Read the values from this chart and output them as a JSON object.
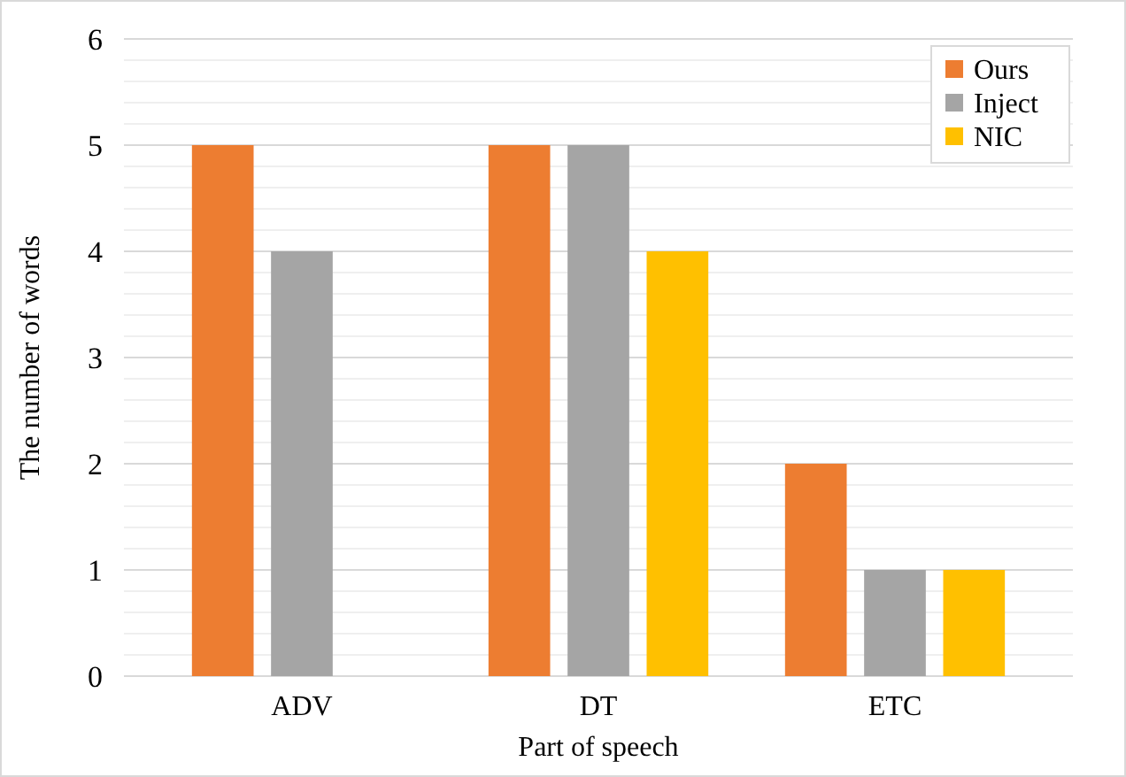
{
  "chart_data": {
    "type": "bar",
    "xlabel": "Part of speech",
    "ylabel": "The number of words",
    "categories": [
      "ADV",
      "DT",
      "ETC"
    ],
    "series": [
      {
        "name": "Ours",
        "color": "#ed7d31",
        "values": [
          5,
          5,
          2
        ]
      },
      {
        "name": "Inject",
        "color": "#a5a5a5",
        "values": [
          4,
          5,
          1
        ]
      },
      {
        "name": "NIC",
        "color": "#ffc000",
        "values": [
          0,
          4,
          1
        ]
      }
    ],
    "ylim": [
      0,
      6
    ],
    "yticks": [
      0,
      {
        "value": 0.2,
        "label": null
      },
      {
        "value": 0.4,
        "label": null
      },
      {
        "value": 0.6,
        "label": null
      },
      {
        "value": 0.8,
        "label": null
      },
      1,
      {
        "value": 1.2,
        "label": null
      },
      {
        "value": 1.4,
        "label": null
      },
      {
        "value": 1.6,
        "label": null
      },
      {
        "value": 1.8,
        "label": null
      },
      2,
      {
        "value": 2.2,
        "label": null
      },
      {
        "value": 2.4,
        "label": null
      },
      {
        "value": 2.6,
        "label": null
      },
      {
        "value": 2.8,
        "label": null
      },
      3,
      {
        "value": 3.2,
        "label": null
      },
      {
        "value": 3.4,
        "label": null
      },
      {
        "value": 3.6,
        "label": null
      },
      {
        "value": 3.8,
        "label": null
      },
      4,
      {
        "value": 4.2,
        "label": null
      },
      {
        "value": 4.4,
        "label": null
      },
      {
        "value": 4.6,
        "label": null
      },
      {
        "value": 4.8,
        "label": null
      },
      5,
      {
        "value": 5.2,
        "label": null
      },
      {
        "value": 5.4,
        "label": null
      },
      {
        "value": 5.6,
        "label": null
      },
      {
        "value": 5.8,
        "label": null
      },
      6
    ],
    "grid": true,
    "legend": "top right"
  }
}
